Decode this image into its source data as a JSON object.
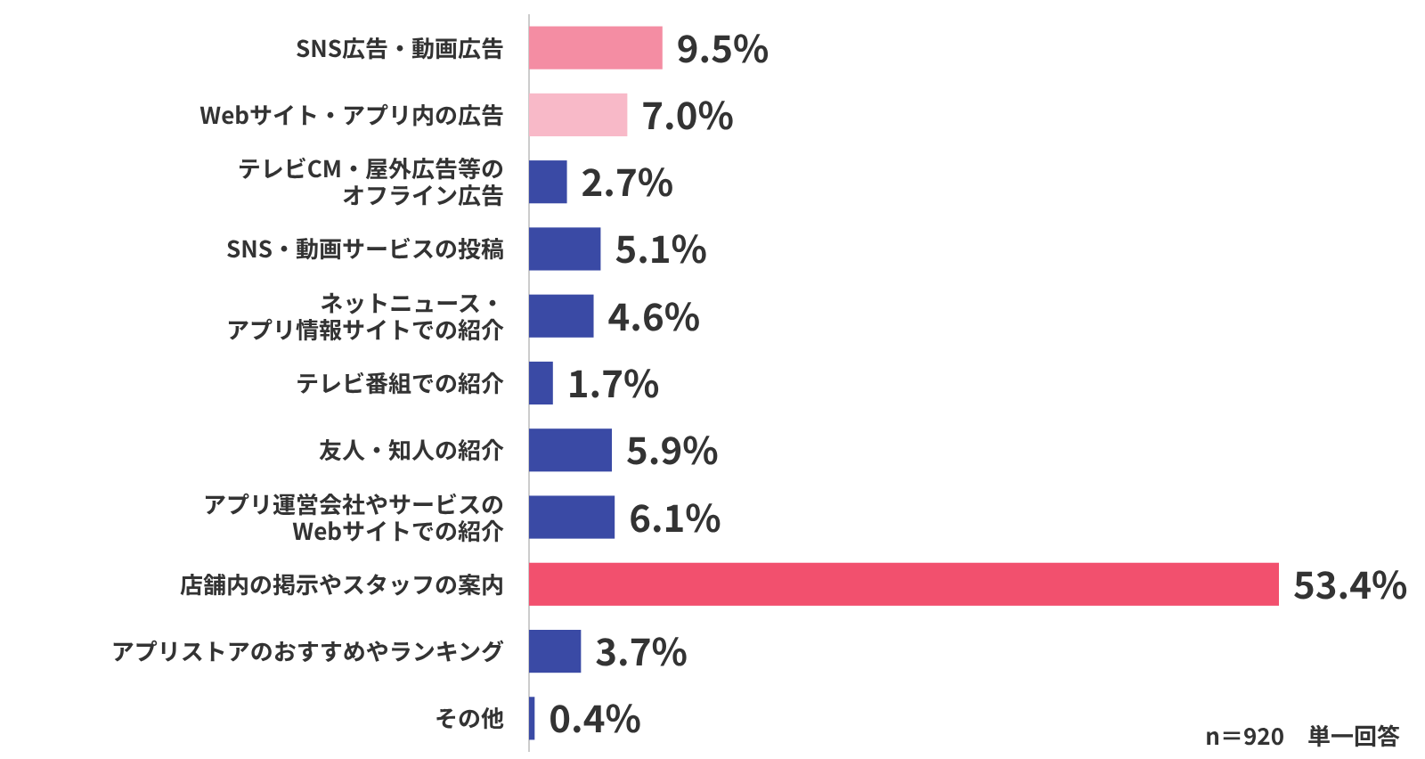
{
  "chart_data": {
    "type": "bar",
    "orientation": "horizontal",
    "categories": [
      "SNS広告・動画広告",
      "Webサイト・アプリ内の広告",
      "テレビCM・屋外広告等のオフライン広告",
      "SNS・動画サービスの投稿",
      "ネットニュース・アプリ情報サイトでの紹介",
      "テレビ番組での紹介",
      "友人・知人の紹介",
      "アプリ運営会社やサービスのWebサイトでの紹介",
      "店舗内の掲示やスタッフの案内",
      "アプリストアのおすすめやランキング",
      "その他"
    ],
    "values": [
      9.5,
      7.0,
      2.7,
      5.1,
      4.6,
      1.7,
      5.9,
      6.1,
      53.4,
      3.7,
      0.4
    ],
    "value_labels": [
      "9.5%",
      "7.0%",
      "2.7%",
      "5.1%",
      "4.6%",
      "1.7%",
      "5.9%",
      "6.1%",
      "53.4%",
      "3.7%",
      "0.4%"
    ],
    "colors": [
      "#f48da3",
      "#f8b9c8",
      "#3a4aa5",
      "#3a4aa5",
      "#3a4aa5",
      "#3a4aa5",
      "#3a4aa5",
      "#3a4aa5",
      "#f2506e",
      "#3a4aa5",
      "#3a4aa5"
    ],
    "annotations": [
      "n＝920　単一回答"
    ]
  }
}
